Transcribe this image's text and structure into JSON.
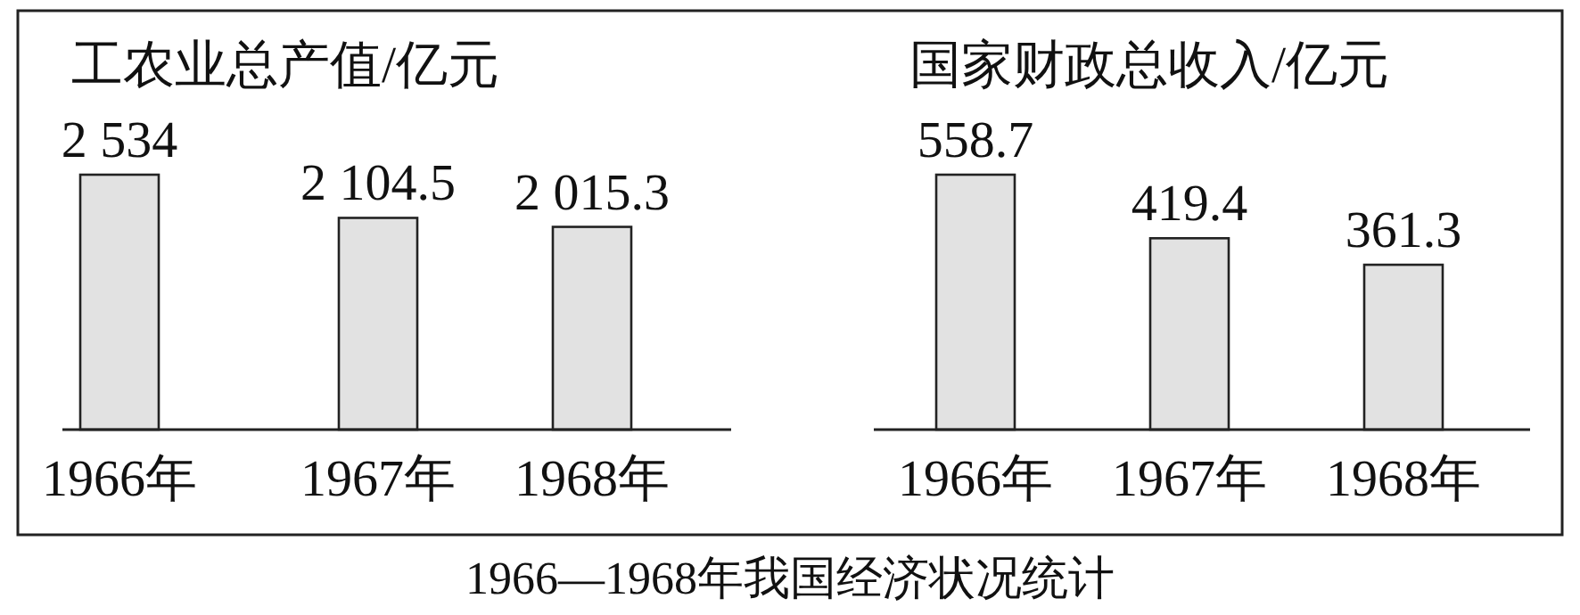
{
  "chart_data": [
    {
      "type": "bar",
      "title": "工农业总产值/亿元",
      "categories": [
        "1966年",
        "1967年",
        "1968年"
      ],
      "values": [
        2534,
        2104.5,
        2015.3
      ],
      "value_labels": [
        "2 534",
        "2 104.5",
        "2 015.3"
      ],
      "color": "#e2e2e2",
      "annotations": [
        "1966—1968年我国经济状况统计"
      ]
    },
    {
      "type": "bar",
      "title": "国家财政总收入/亿元",
      "categories": [
        "1966年",
        "1967年",
        "1968年"
      ],
      "values": [
        558.7,
        419.4,
        361.3
      ],
      "value_labels": [
        "558.7",
        "419.4",
        "361.3"
      ],
      "color": "#e2e2e2"
    }
  ]
}
